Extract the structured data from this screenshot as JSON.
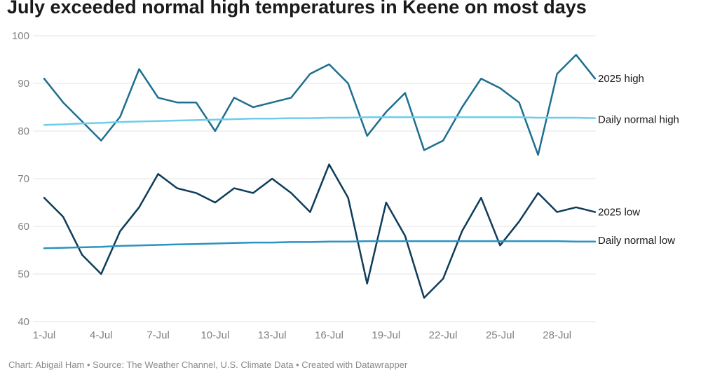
{
  "chart_data": {
    "type": "line",
    "title": "July exceeded normal high temperatures in Keene on most days",
    "subtitle": "",
    "xlabel": "",
    "ylabel": "",
    "ylim": [
      40,
      100
    ],
    "yticks": [
      40,
      50,
      60,
      70,
      80,
      90,
      100
    ],
    "grid": true,
    "legend": "line-end labels",
    "x": [
      "1-Jul",
      "2-Jul",
      "3-Jul",
      "4-Jul",
      "5-Jul",
      "6-Jul",
      "7-Jul",
      "8-Jul",
      "9-Jul",
      "10-Jul",
      "11-Jul",
      "12-Jul",
      "13-Jul",
      "14-Jul",
      "15-Jul",
      "16-Jul",
      "17-Jul",
      "18-Jul",
      "19-Jul",
      "20-Jul",
      "21-Jul",
      "22-Jul",
      "23-Jul",
      "24-Jul",
      "25-Jul",
      "26-Jul",
      "27-Jul",
      "28-Jul",
      "29-Jul",
      "30-Jul",
      "31-Jul"
    ],
    "xtick_labels": [
      "1-Jul",
      "4-Jul",
      "7-Jul",
      "10-Jul",
      "13-Jul",
      "16-Jul",
      "19-Jul",
      "22-Jul",
      "25-Jul",
      "28-Jul"
    ],
    "series": [
      {
        "name": "2025 high",
        "color": "#1d6f8f",
        "values": [
          91,
          86,
          82,
          78,
          83,
          93,
          87,
          86,
          86,
          80,
          87,
          85,
          86,
          87,
          92,
          94,
          90,
          79,
          84,
          88,
          76,
          78,
          85,
          91,
          89,
          86,
          75,
          92,
          96,
          91,
          null
        ]
      },
      {
        "name": "Daily normal high",
        "color": "#6fcdeb",
        "values": [
          81.3,
          81.4,
          81.6,
          81.7,
          81.9,
          82,
          82.1,
          82.2,
          82.3,
          82.4,
          82.5,
          82.6,
          82.6,
          82.7,
          82.7,
          82.8,
          82.8,
          82.9,
          82.9,
          82.9,
          82.9,
          82.9,
          82.9,
          82.9,
          82.9,
          82.9,
          82.8,
          82.8,
          82.8,
          82.7,
          null
        ]
      },
      {
        "name": "2025 low",
        "color": "#0e3c5a",
        "values": [
          66,
          62,
          54,
          50,
          59,
          64,
          71,
          68,
          67,
          65,
          68,
          67,
          70,
          67,
          63,
          73,
          66,
          48,
          65,
          58,
          45,
          49,
          59,
          66,
          56,
          61,
          67,
          63,
          64,
          63,
          null
        ]
      },
      {
        "name": "Daily normal low",
        "color": "#2a93c0",
        "values": [
          55.4,
          55.5,
          55.6,
          55.7,
          55.9,
          56,
          56.1,
          56.2,
          56.3,
          56.4,
          56.5,
          56.6,
          56.6,
          56.7,
          56.7,
          56.8,
          56.8,
          56.9,
          56.9,
          56.9,
          56.9,
          56.9,
          56.9,
          56.9,
          56.9,
          56.9,
          56.9,
          56.9,
          56.8,
          56.8,
          null
        ]
      }
    ]
  },
  "footer": {
    "text": "Chart: Abigail Ham • Source: The Weather Channel, U.S. Climate Data • Created with Datawrapper"
  }
}
